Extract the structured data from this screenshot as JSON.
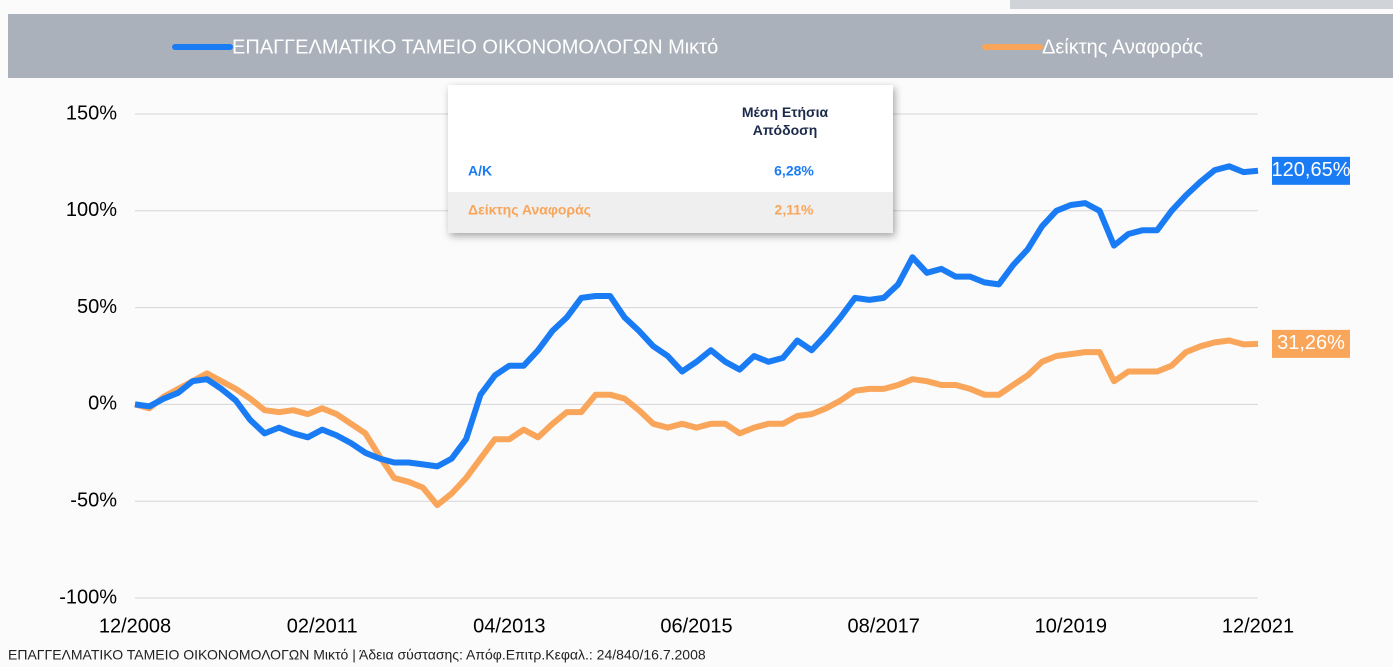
{
  "chart_data": {
    "type": "line",
    "legend_position": "top",
    "categories": [
      "12/2008",
      "02/2009",
      "04/2009",
      "06/2009",
      "08/2009",
      "10/2009",
      "12/2009",
      "02/2010",
      "04/2010",
      "06/2010",
      "08/2010",
      "10/2010",
      "12/2010",
      "02/2011",
      "04/2011",
      "06/2011",
      "08/2011",
      "10/2011",
      "12/2011",
      "02/2012",
      "04/2012",
      "06/2012",
      "08/2012",
      "10/2012",
      "12/2012",
      "02/2013",
      "04/2013",
      "06/2013",
      "08/2013",
      "10/2013",
      "12/2013",
      "02/2014",
      "04/2014",
      "06/2014",
      "08/2014",
      "10/2014",
      "12/2014",
      "02/2015",
      "04/2015",
      "06/2015",
      "08/2015",
      "10/2015",
      "12/2015",
      "02/2016",
      "04/2016",
      "06/2016",
      "08/2016",
      "10/2016",
      "12/2016",
      "02/2017",
      "04/2017",
      "06/2017",
      "08/2017",
      "10/2017",
      "12/2017",
      "02/2018",
      "04/2018",
      "06/2018",
      "08/2018",
      "10/2018",
      "12/2018",
      "02/2019",
      "04/2019",
      "06/2019",
      "08/2019",
      "10/2019",
      "12/2019",
      "02/2020",
      "04/2020",
      "06/2020",
      "08/2020",
      "10/2020",
      "12/2020",
      "02/2021",
      "04/2021",
      "06/2021",
      "08/2021",
      "10/2021",
      "12/2021"
    ],
    "xticks": [
      "12/2008",
      "02/2011",
      "04/2013",
      "06/2015",
      "08/2017",
      "10/2019",
      "12/2021"
    ],
    "ylim": [
      -100,
      150
    ],
    "yticks": [
      {
        "value": -100,
        "label": "-100%"
      },
      {
        "value": -50,
        "label": "-50%"
      },
      {
        "value": 0,
        "label": "0%"
      },
      {
        "value": 50,
        "label": "50%"
      },
      {
        "value": 100,
        "label": "100%"
      },
      {
        "value": 150,
        "label": "150%"
      }
    ],
    "grid": true,
    "series": [
      {
        "name": "ΕΠΑΓΓΕΛΜΑΤΙΚΟ ΤΑΜΕΙΟ ΟΙΚΟΝΟΜΟΛΟΓΩΝ Μικτό",
        "color": "#1a7cf5",
        "end_label": "120,65%",
        "values": [
          0,
          -1,
          3,
          6,
          12,
          13,
          8,
          2,
          -8,
          -15,
          -12,
          -15,
          -17,
          -13,
          -16,
          -20,
          -25,
          -28,
          -30,
          -30,
          -31,
          -32,
          -28,
          -18,
          5,
          15,
          20,
          20,
          28,
          38,
          45,
          55,
          56,
          56,
          45,
          38,
          30,
          25,
          17,
          22,
          28,
          22,
          18,
          25,
          22,
          24,
          33,
          28,
          36,
          45,
          55,
          54,
          55,
          62,
          76,
          68,
          70,
          66,
          66,
          63,
          62,
          72,
          80,
          92,
          100,
          103,
          104,
          100,
          82,
          88,
          90,
          90,
          100,
          108,
          115,
          121,
          123,
          120,
          120.65
        ]
      },
      {
        "name": "Δείκτης Αναφοράς",
        "color": "#f9a55a",
        "end_label": "31,26%",
        "values": [
          0,
          -2,
          4,
          8,
          12,
          16,
          12,
          8,
          3,
          -3,
          -4,
          -3,
          -5,
          -2,
          -5,
          -10,
          -15,
          -27,
          -38,
          -40,
          -43,
          -52,
          -46,
          -38,
          -28,
          -18,
          -18,
          -13,
          -17,
          -10,
          -4,
          -4,
          5,
          5,
          3,
          -3,
          -10,
          -12,
          -10,
          -12,
          -10,
          -10,
          -15,
          -12,
          -10,
          -10,
          -6,
          -5,
          -2,
          2,
          7,
          8,
          8,
          10,
          13,
          12,
          10,
          10,
          8,
          5,
          5,
          10,
          15,
          22,
          25,
          26,
          27,
          27,
          12,
          17,
          17,
          17,
          20,
          27,
          30,
          32,
          33,
          31,
          31.26
        ]
      }
    ],
    "table": {
      "title": "Μέση Ετήσια Απόδοση",
      "rows": [
        [
          "Α/Κ",
          "6,28%"
        ],
        [
          "Δείκτης Αναφοράς",
          "2,11%"
        ]
      ]
    },
    "footer": "ΕΠΑΓΓΕΛΜΑΤΙΚΟ ΤΑΜΕΙΟ ΟΙΚΟΝΟΜΟΛΟΓΩΝ Μικτό | Άδεια σύστασης: Απόφ.Επιτρ.Κεφαλ.: 24/840/16.7.2008"
  }
}
